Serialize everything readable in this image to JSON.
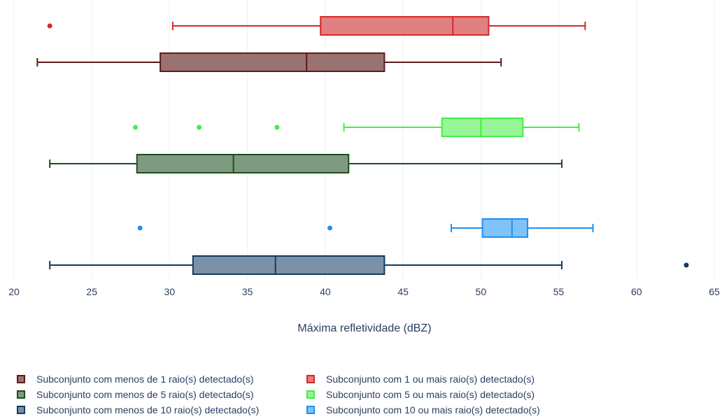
{
  "chart_data": {
    "type": "box",
    "orientation": "horizontal",
    "xlabel": "Máxima refletividade (dBZ)",
    "xlim": [
      19.5,
      65.5
    ],
    "xticks": [
      20,
      25,
      30,
      35,
      40,
      45,
      50,
      55,
      60,
      65
    ],
    "grid": true,
    "legend_position": "bottom",
    "groups": [
      "1 raio(s)",
      "5 raio(s)",
      "10 raio(s)"
    ],
    "series": [
      {
        "name": "Subconjunto com menos de 1 raio(s) detectado(s)",
        "group": 0,
        "row": "lower",
        "color": "#5c1a1a",
        "fill": "#9b7272",
        "whisker_low": 21.5,
        "q1": 29.4,
        "median": 38.8,
        "q3": 43.8,
        "whisker_high": 51.3,
        "outliers": []
      },
      {
        "name": "Subconjunto com 1 ou mais raio(s) detectado(s)",
        "group": 0,
        "row": "upper",
        "color": "#d62728",
        "fill": "#e08080",
        "whisker_low": 30.2,
        "q1": 39.7,
        "median": 48.2,
        "q3": 50.5,
        "whisker_high": 56.7,
        "outliers": [
          22.3
        ]
      },
      {
        "name": "Subconjunto com menos de 5 raio(s) detectado(s)",
        "group": 1,
        "row": "lower",
        "color": "#1e4d1e",
        "fill": "#7f9b7f",
        "whisker_low": 22.3,
        "q1": 27.9,
        "median": 34.1,
        "q3": 41.5,
        "whisker_high": 55.2,
        "outliers": []
      },
      {
        "name": "Subconjunto com 5 ou mais raio(s) detectado(s)",
        "group": 1,
        "row": "upper",
        "color": "#44ee44",
        "fill": "#96f596",
        "whisker_low": 41.2,
        "q1": 47.5,
        "median": 50.0,
        "q3": 52.7,
        "whisker_high": 56.3,
        "outliers": [
          27.8,
          31.9,
          36.9
        ]
      },
      {
        "name": "Subconjunto com menos de 10 raio(s) detectado(s)",
        "group": 2,
        "row": "lower",
        "color": "#123a5e",
        "fill": "#7a91a8",
        "whisker_low": 22.3,
        "q1": 31.5,
        "median": 36.8,
        "q3": 43.8,
        "whisker_high": 55.2,
        "outliers": [
          63.2
        ]
      },
      {
        "name": "Subconjunto com 10 ou mais raio(s) detectado(s)",
        "group": 2,
        "row": "upper",
        "color": "#1e90f0",
        "fill": "#80c2fa",
        "whisker_low": 48.1,
        "q1": 50.1,
        "median": 52.0,
        "q3": 53.0,
        "whisker_high": 57.2,
        "outliers": [
          28.1,
          40.3
        ]
      }
    ]
  }
}
